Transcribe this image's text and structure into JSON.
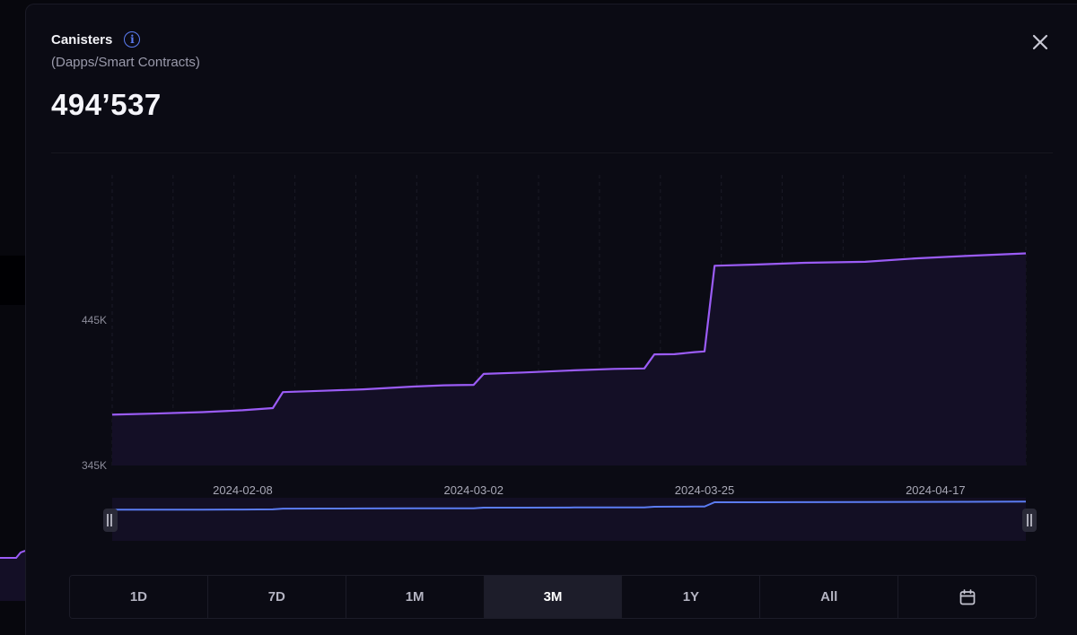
{
  "modal": {
    "title": "Canisters",
    "subtitle": "(Dapps/Smart Contracts)",
    "value": "494’537",
    "info_icon": "info-icon",
    "close_icon": "close-icon"
  },
  "ranges": {
    "items": [
      "1D",
      "7D",
      "1M",
      "3M",
      "1Y",
      "All"
    ],
    "active": "3M",
    "calendar_icon": "calendar-icon"
  },
  "colors": {
    "line": "#9b5cf6",
    "area": "#140f26",
    "navigator_line": "#5b7cf2",
    "accent": "#5b7cf2"
  },
  "chart_data": {
    "type": "area",
    "title": "",
    "xlabel": "",
    "ylabel": "",
    "ylim": [
      345000,
      545000
    ],
    "y_ticks": [
      "345K",
      "445K"
    ],
    "x_ticks": [
      "2024-02-08",
      "2024-03-02",
      "2024-03-25",
      "2024-04-17"
    ],
    "x_range": [
      "2024-01-26",
      "2024-04-26"
    ],
    "series": [
      {
        "name": "",
        "x": [
          "2024-01-26",
          "2024-01-30",
          "2024-02-04",
          "2024-02-08",
          "2024-02-11",
          "2024-02-12",
          "2024-02-16",
          "2024-02-20",
          "2024-02-25",
          "2024-02-28",
          "2024-03-02",
          "2024-03-03",
          "2024-03-07",
          "2024-03-12",
          "2024-03-16",
          "2024-03-19",
          "2024-03-20",
          "2024-03-22",
          "2024-03-24",
          "2024-03-25",
          "2024-03-26",
          "2024-03-30",
          "2024-04-04",
          "2024-04-10",
          "2024-04-15",
          "2024-04-20",
          "2024-04-26"
        ],
        "values": [
          380000,
          380700,
          381700,
          383000,
          384500,
          395500,
          396400,
          397400,
          399300,
          400200,
          400500,
          408000,
          409000,
          410500,
          411500,
          411800,
          421500,
          421600,
          423000,
          423500,
          482500,
          483300,
          484500,
          485200,
          487500,
          489200,
          491000
        ]
      }
    ]
  }
}
